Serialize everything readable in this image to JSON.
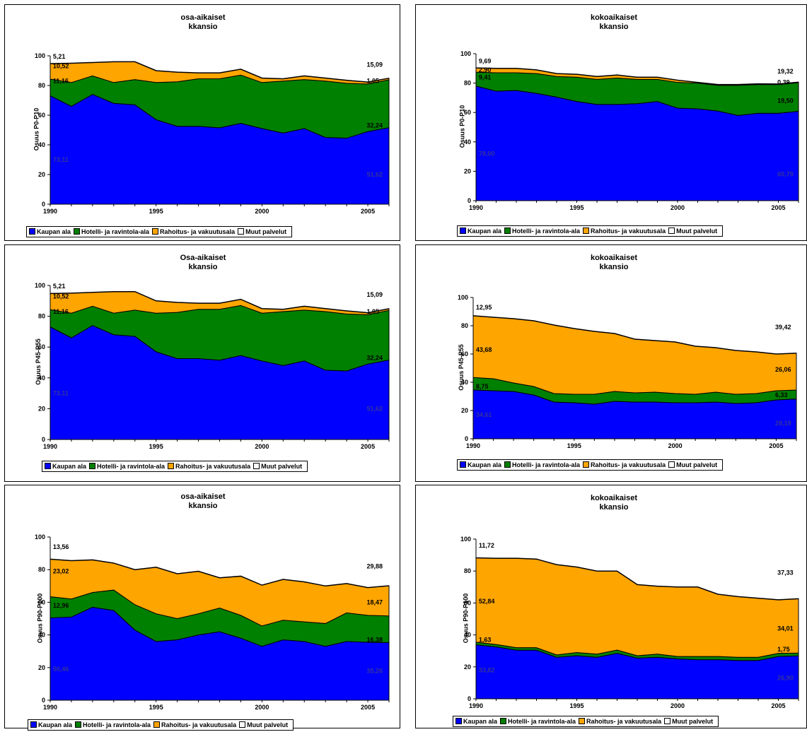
{
  "colors": {
    "kaupan": "#0000FF",
    "hotelli": "#008000",
    "rahoitus": "#FFA500",
    "muut": "#FFFFFF"
  },
  "legend": [
    "Kaupan ala",
    "Hotelli- ja ravintola-ala",
    "Rahoitus- ja vakuutusala",
    "Muut palvelut"
  ],
  "chart_data": [
    {
      "type": "area",
      "title": "osa-aikaiset kkansio",
      "ylabel": "Osuus P0-P10",
      "xticks": [
        "1990",
        "1995",
        "2000",
        "2005"
      ],
      "ylim": [
        0,
        100
      ],
      "yticks": [
        "0",
        "20",
        "40",
        "60",
        "80",
        "100"
      ],
      "x": [
        1990,
        1991,
        1992,
        1993,
        1994,
        1995,
        1996,
        1997,
        1998,
        1999,
        2000,
        2001,
        2002,
        2003,
        2004,
        2005,
        2006
      ],
      "series": [
        {
          "name": "Kaupan ala",
          "values": [
            73.11,
            66,
            74,
            68,
            67,
            57,
            52.5,
            52.5,
            51.5,
            54.5,
            51,
            48,
            51,
            45,
            44.5,
            49,
            51.62
          ]
        },
        {
          "name": "Hotelli- ja ravintola-ala",
          "values": [
            11.16,
            16,
            12.5,
            14,
            17,
            25,
            30,
            32,
            33,
            32.5,
            31,
            35,
            33,
            38,
            37,
            32,
            32.24
          ]
        },
        {
          "name": "Rahoitus- ja vakuutusala",
          "values": [
            10.52,
            13,
            9,
            14,
            12,
            8,
            6.5,
            4,
            4,
            4,
            3,
            1.5,
            2.5,
            2,
            2,
            1.3,
            1.05
          ]
        }
      ],
      "labels": [
        "73,11",
        "11,16",
        "10,52",
        "5,21",
        "51,62",
        "32,24",
        "1,05",
        "15,09"
      ]
    },
    {
      "type": "area",
      "title": "kokoaikaiset kkansio",
      "ylabel": "Osuus P0-P10",
      "xticks": [
        "1990",
        "1995",
        "2000",
        "2005"
      ],
      "ylim": [
        0,
        100
      ],
      "yticks": [
        "0",
        "20",
        "40",
        "60",
        "80",
        "100"
      ],
      "x": [
        1990,
        1991,
        1992,
        1993,
        1994,
        1995,
        1996,
        1997,
        1998,
        1999,
        2000,
        2001,
        2002,
        2003,
        2004,
        2005,
        2006
      ],
      "series": [
        {
          "name": "Kaupan ala",
          "values": [
            78.0,
            74.5,
            75,
            73,
            70.5,
            67.5,
            65.5,
            65.5,
            66,
            67.5,
            63,
            62.5,
            61,
            58,
            59.5,
            59.5,
            60.79
          ]
        },
        {
          "name": "Hotelli- ja ravintola-ala",
          "values": [
            9.41,
            12.5,
            12,
            13.5,
            14,
            16.5,
            17,
            18,
            16.5,
            15,
            17.5,
            17.5,
            17.5,
            20.5,
            19.5,
            19.5,
            19.5
          ]
        },
        {
          "name": "Rahoitus- ja vakuutusala",
          "values": [
            2.9,
            3,
            3,
            2.5,
            2,
            2,
            2,
            2,
            1.5,
            1.5,
            1.5,
            0.5,
            0.5,
            0.5,
            0.5,
            0.4,
            0.39
          ]
        }
      ],
      "labels": [
        "78,00",
        "9,41",
        "2,90",
        "9,69",
        "60,79",
        "19,50",
        "0,39",
        "19,32"
      ]
    },
    {
      "type": "area",
      "title": "Osa-aikaiset kkansio",
      "ylabel": "Osuus P45-P55",
      "xticks": [
        "1990",
        "1995",
        "2000",
        "2005"
      ],
      "ylim": [
        0,
        100
      ],
      "yticks": [
        "0",
        "20",
        "40",
        "60",
        "80",
        "100"
      ],
      "x": [
        1990,
        1991,
        1992,
        1993,
        1994,
        1995,
        1996,
        1997,
        1998,
        1999,
        2000,
        2001,
        2002,
        2003,
        2004,
        2005,
        2006
      ],
      "series": [
        {
          "name": "Kaupan ala",
          "values": [
            73.11,
            66,
            74,
            68,
            67,
            57,
            52.5,
            52.5,
            51.5,
            54.5,
            51,
            48,
            51,
            45,
            44.5,
            49,
            51.62
          ]
        },
        {
          "name": "Hotelli- ja ravintola-ala",
          "values": [
            11.16,
            16,
            12.5,
            14,
            17,
            25,
            30,
            32,
            33,
            32.5,
            31,
            35,
            33,
            38,
            37,
            32,
            32.24
          ]
        },
        {
          "name": "Rahoitus- ja vakuutusala",
          "values": [
            10.52,
            13,
            9,
            14,
            12,
            8,
            6.5,
            4,
            4,
            4,
            3,
            1.5,
            2.5,
            2,
            2,
            1.3,
            1.05
          ]
        }
      ],
      "labels": [
        "73,11",
        "11,16",
        "10,52",
        "5,21",
        "51,62",
        "32,24",
        "1,05",
        "15,09"
      ]
    },
    {
      "type": "area",
      "title": "kokoaikaiset kkansio",
      "ylabel": "Osuus P45-P55",
      "xticks": [
        "1990",
        "1995",
        "2000",
        "2005"
      ],
      "ylim": [
        0,
        100
      ],
      "yticks": [
        "0",
        "20",
        "40",
        "60",
        "80",
        "100"
      ],
      "x": [
        1990,
        1991,
        1992,
        1993,
        1994,
        1995,
        1996,
        1997,
        1998,
        1999,
        2000,
        2001,
        2002,
        2003,
        2004,
        2005,
        2006
      ],
      "series": [
        {
          "name": "Kaupan ala",
          "values": [
            34.61,
            34,
            33.5,
            31,
            26,
            25.5,
            24.5,
            26.5,
            26,
            26,
            25.5,
            25.5,
            26,
            25,
            25.5,
            27.5,
            28.19
          ]
        },
        {
          "name": "Hotelli- ja ravintola-ala",
          "values": [
            8.75,
            8.5,
            6,
            6,
            6,
            6,
            7,
            7,
            6.5,
            7,
            6.5,
            6,
            7,
            6.5,
            6.5,
            6.5,
            6.33
          ]
        },
        {
          "name": "Rahoitus- ja vakuutusala",
          "values": [
            43.68,
            43.5,
            45.5,
            46.5,
            48.5,
            46.5,
            44.5,
            41,
            38,
            36.5,
            36.5,
            34,
            31.5,
            31,
            29.5,
            26,
            26.06
          ]
        }
      ],
      "labels": [
        "34,61",
        "8,75",
        "43,68",
        "12,95",
        "28,19",
        "6,33",
        "26,06",
        "39,42"
      ]
    },
    {
      "type": "area",
      "title": "osa-aikaiset kkansio",
      "ylabel": "Osuus P90-P100",
      "xticks": [
        "1990",
        "1995",
        "2000",
        "2005"
      ],
      "ylim": [
        0,
        100
      ],
      "yticks": [
        "0",
        "20",
        "40",
        "60",
        "80",
        "100"
      ],
      "x": [
        1990,
        1991,
        1992,
        1993,
        1994,
        1995,
        1996,
        1997,
        1998,
        1999,
        2000,
        2001,
        2002,
        2003,
        2004,
        2005,
        2006
      ],
      "series": [
        {
          "name": "Kaupan ala",
          "values": [
            50.46,
            51,
            57,
            55,
            43,
            36,
            37,
            40,
            42,
            38,
            33,
            37,
            36,
            33,
            36,
            35.5,
            35.26
          ]
        },
        {
          "name": "Hotelli- ja ravintola-ala",
          "values": [
            12.96,
            11,
            9,
            12.5,
            15.5,
            17,
            13,
            13,
            14.5,
            14,
            12.5,
            12,
            12,
            14,
            17.5,
            16.5,
            16.38
          ]
        },
        {
          "name": "Rahoitus- ja vakuutusala",
          "values": [
            23.02,
            23.5,
            20,
            16.5,
            21.5,
            28.5,
            27.5,
            26,
            18.5,
            24,
            25,
            25,
            24.5,
            23,
            18,
            17,
            18.47
          ]
        }
      ],
      "labels": [
        "50,46",
        "12,96",
        "23,02",
        "13,56",
        "35,26",
        "16,38",
        "18,47",
        "29,88"
      ]
    },
    {
      "type": "area",
      "title": "kokoaikaiset kkansio",
      "ylabel": "Osuus P90-P100",
      "xticks": [
        "1990",
        "1995",
        "2000",
        "2005"
      ],
      "ylim": [
        0,
        100
      ],
      "yticks": [
        "0",
        "20",
        "40",
        "60",
        "80",
        "100"
      ],
      "x": [
        1990,
        1991,
        1992,
        1993,
        1994,
        1995,
        1996,
        1997,
        1998,
        1999,
        2000,
        2001,
        2002,
        2003,
        2004,
        2005,
        2006
      ],
      "series": [
        {
          "name": "Kaupan ala",
          "values": [
            33.82,
            32.5,
            30.5,
            30.5,
            26,
            27,
            26,
            28.5,
            25.5,
            26,
            25,
            24.5,
            24.5,
            24,
            24,
            26.5,
            26.9
          ]
        },
        {
          "name": "Hotelli- ja ravintola-ala",
          "values": [
            1.63,
            1.5,
            1.5,
            1.5,
            1.5,
            2,
            2,
            2,
            1.5,
            2,
            1.5,
            2,
            2,
            2,
            2,
            2,
            1.75
          ]
        },
        {
          "name": "Rahoitus- ja vakuutusala",
          "values": [
            52.84,
            54,
            56,
            55.5,
            56.5,
            53.5,
            52,
            49.5,
            44.5,
            42.5,
            43.5,
            43.5,
            39,
            38,
            37,
            33.5,
            34.01
          ]
        }
      ],
      "labels": [
        "33,82",
        "1,63",
        "52,84",
        "11,72",
        "26,90",
        "1,75",
        "34,01",
        "37,33"
      ]
    }
  ]
}
